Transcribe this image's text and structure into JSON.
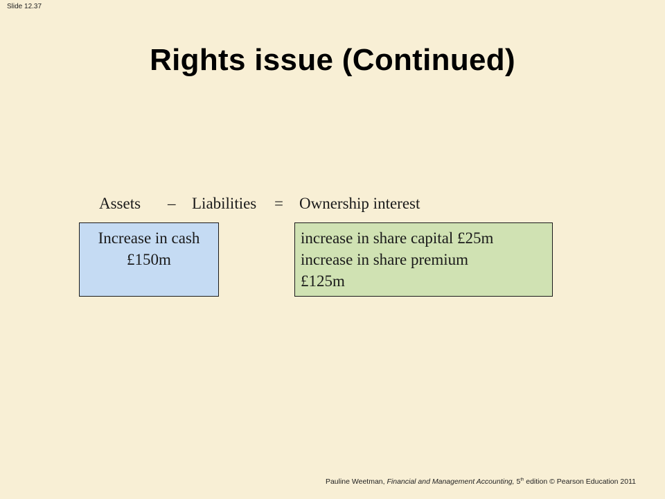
{
  "slide": {
    "number_label": "Slide 12.37",
    "title": "Rights issue (Continued)"
  },
  "equation": {
    "assets": "Assets",
    "minus": "–",
    "liabilities": "Liabilities",
    "equals": "=",
    "ownership": "Ownership interest"
  },
  "assets_box": {
    "lines": [
      "Increase in cash",
      "£150m"
    ],
    "color": "#c5dbf3"
  },
  "ownership_box": {
    "lines": [
      "increase in share capital £25m",
      "increase in share premium",
      "£125m"
    ],
    "color": "#d0e2b3"
  },
  "footer": {
    "author": "Pauline Weetman,",
    "book_title": "Financial and Management Accounting,",
    "edition_num": "5",
    "edition_sup": "th",
    "edition_rest": "edition © Pearson Education 2011"
  },
  "colors": {
    "background": "#f8efd5"
  }
}
